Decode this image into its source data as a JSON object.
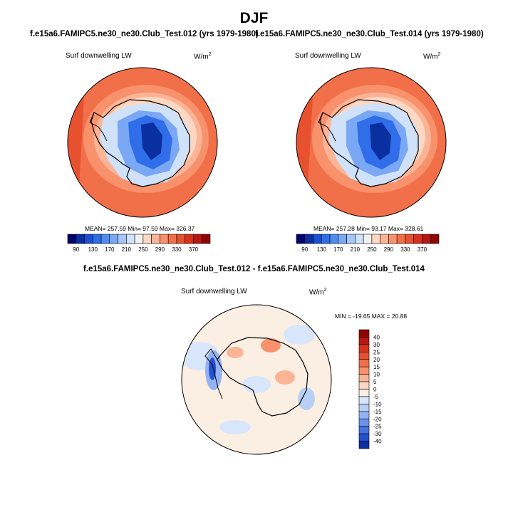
{
  "title": "DJF",
  "panels": [
    {
      "case_title": "f.e15a6.FAMIPC5.ne30_ne30.Club_Test.012 (yrs 1979-1980)",
      "variable": "Surf downwelling LW",
      "units_base": "W/m",
      "units_exp": "2",
      "stats": "MEAN= 257.59  Min=  97.59  Max= 326.37"
    },
    {
      "case_title": "f.e15a6.FAMIPC5.ne30_ne30.Club_Test.014 (yrs 1979-1980)",
      "variable": "Surf downwelling LW",
      "units_base": "W/m",
      "units_exp": "2",
      "stats": "MEAN= 257.28  Min=  93.17  Max= 328.61"
    }
  ],
  "diff_panel": {
    "case_title": "f.e15a6.FAMIPC5.ne30_ne30.Club_Test.012 - f.e15a6.FAMIPC5.ne30_ne30.Club_Test.014",
    "variable": "Surf downwelling LW",
    "units_base": "W/m",
    "units_exp": "2",
    "stats": "MIN = -19.65 MAX =  20.88"
  },
  "chart_data": [
    {
      "type": "heatmap",
      "projection": "south-polar-stereographic",
      "title": "f.e15a6.FAMIPC5.ne30_ne30.Club_Test.012 (yrs 1979-1980)",
      "variable": "Surf downwelling LW",
      "mean": 257.59,
      "min": 97.59,
      "max": 326.37,
      "colorbar_labels": [
        "90",
        "130",
        "170",
        "210",
        "250",
        "290",
        "330",
        "370"
      ],
      "colorbar_colors": [
        "#03006b",
        "#0a2fa0",
        "#1a4fd6",
        "#2f6ee8",
        "#4f8bf0",
        "#7aa8f4",
        "#a6c6f7",
        "#d0e2fa",
        "#f1f1ef",
        "#fcd7c3",
        "#fbb596",
        "#f8926c",
        "#f27049",
        "#e8512f",
        "#d6311c",
        "#b8170f",
        "#8f0606"
      ]
    },
    {
      "type": "heatmap",
      "projection": "south-polar-stereographic",
      "title": "f.e15a6.FAMIPC5.ne30_ne30.Club_Test.014 (yrs 1979-1980)",
      "variable": "Surf downwelling LW",
      "mean": 257.28,
      "min": 93.17,
      "max": 328.61,
      "colorbar_labels": [
        "90",
        "130",
        "170",
        "210",
        "250",
        "290",
        "330",
        "370"
      ],
      "colorbar_colors": [
        "#03006b",
        "#0a2fa0",
        "#1a4fd6",
        "#2f6ee8",
        "#4f8bf0",
        "#7aa8f4",
        "#a6c6f7",
        "#d0e2fa",
        "#f1f1ef",
        "#fcd7c3",
        "#fbb596",
        "#f8926c",
        "#f27049",
        "#e8512f",
        "#d6311c",
        "#b8170f",
        "#8f0606"
      ]
    },
    {
      "type": "heatmap",
      "projection": "south-polar-stereographic",
      "title": "f.e15a6.FAMIPC5.ne30_ne30.Club_Test.012 - f.e15a6.FAMIPC5.ne30_ne30.Club_Test.014",
      "variable": "Surf downwelling LW",
      "min": -19.65,
      "max": 20.88,
      "colorbar_labels": [
        "40",
        "30",
        "25",
        "20",
        "15",
        "10",
        "5",
        "0",
        "-5",
        "-10",
        "-15",
        "-20",
        "-25",
        "-30",
        "-40"
      ],
      "colorbar_colors": [
        "#8f0606",
        "#b8170f",
        "#d6311c",
        "#e8512f",
        "#f27049",
        "#f8926c",
        "#fbb596",
        "#fcd7c3",
        "#fbefe4",
        "#d8e6fb",
        "#b9d0f6",
        "#93b3f2",
        "#6d94ec",
        "#4672e3",
        "#2450d1",
        "#0a2fa0"
      ]
    }
  ]
}
